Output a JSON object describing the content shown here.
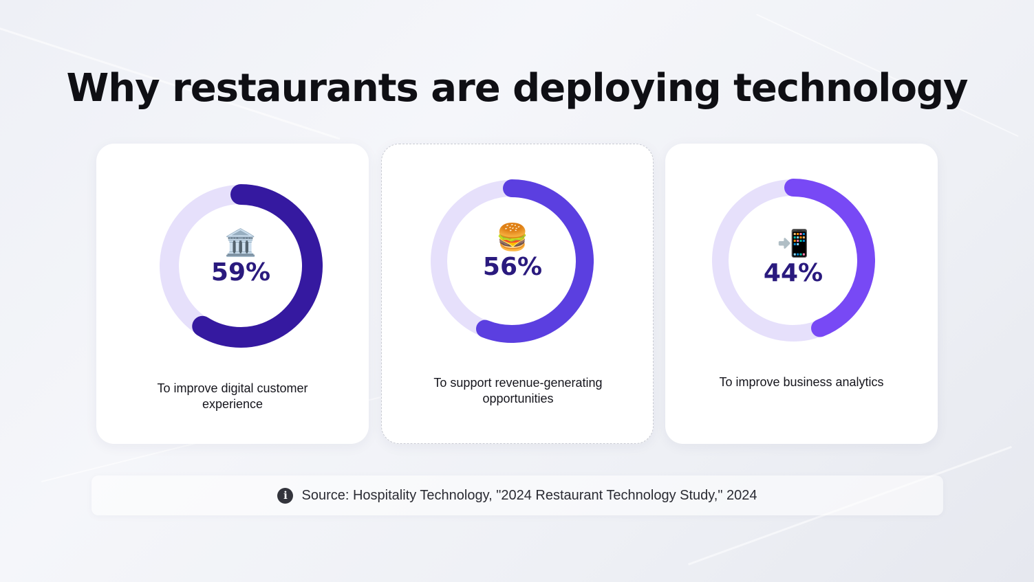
{
  "title": "Why restaurants are deploying technology",
  "chart_data": {
    "type": "pie",
    "variant": "donut",
    "categories": [
      "To improve digital customer experience",
      "To support revenue-generating opportunities",
      "To improve business analytics"
    ],
    "values": [
      59,
      56,
      44
    ],
    "unit": "%"
  },
  "cards": [
    {
      "icon": "bank-icon",
      "emoji": "🏛️",
      "value": 59,
      "value_label": "59%",
      "label_lines": [
        "To improve digital customer",
        "experience"
      ],
      "color": "#3519a0",
      "track": "#e6e0fb"
    },
    {
      "icon": "burger-icon",
      "emoji": "🍔",
      "value": 56,
      "value_label": "56%",
      "label_lines": [
        "To support revenue-generating",
        "opportunities"
      ],
      "color": "#5b3fe0",
      "track": "#e6e0fb"
    },
    {
      "icon": "mobile-phone-arrow-icon",
      "emoji": "📲",
      "value": 44,
      "value_label": "44%",
      "label_lines": [
        "To improve business analytics"
      ],
      "color": "#7849f5",
      "track": "#e6e0fb"
    }
  ],
  "source": "Source: Hospitality Technology, \"2024 Restaurant Technology Study,\" 2024",
  "colors": {
    "title": "#0f0f14",
    "percent_text": "#2a1a7e",
    "card_bg": "#ffffff"
  }
}
